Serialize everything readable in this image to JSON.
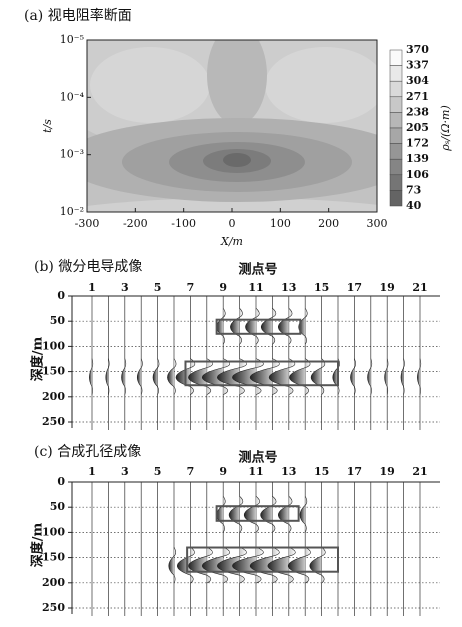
{
  "chart_data": [
    {
      "type": "contour",
      "title": "(a) 视电阻率断面",
      "x_label": "X/m",
      "y_label": "t/s",
      "xlim": [
        -300,
        300
      ],
      "xticks": [
        -300,
        -200,
        -100,
        0,
        100,
        200,
        300
      ],
      "ylim": [
        0.01,
        1e-05
      ],
      "log_y": true,
      "yticks": [
        {
          "value": 1e-05,
          "label": "10⁻⁵"
        },
        {
          "value": 0.0001,
          "label": "10⁻⁴"
        },
        {
          "value": 0.001,
          "label": "10⁻³"
        },
        {
          "value": 0.01,
          "label": "10⁻²"
        }
      ],
      "colorbar": {
        "label": "ρₛ/(Ω·m)",
        "levels": [
          370,
          337,
          304,
          271,
          238,
          205,
          172,
          139,
          106,
          73,
          40
        ]
      }
    },
    {
      "type": "wiggle",
      "title": "(b) 微分电导成像",
      "x_label": "测点号",
      "y_label": "深度/m",
      "categories": [
        "1",
        null,
        "3",
        null,
        "5",
        null,
        "7",
        null,
        "9",
        null,
        "11",
        null,
        "13",
        null,
        "15",
        null,
        "17",
        null,
        "19",
        null,
        "21"
      ],
      "ylim": [
        0,
        250
      ],
      "yticks": [
        0,
        50,
        100,
        150,
        200,
        250
      ],
      "grid": true,
      "anomalies": [
        {
          "depth": 58,
          "amplitudes": [
            0,
            0,
            0,
            0,
            0,
            0,
            0,
            0,
            0.5,
            0.7,
            0.8,
            0.85,
            0.8,
            0.5,
            0,
            0,
            0,
            0,
            0,
            0,
            0
          ]
        },
        {
          "depth": 158,
          "amplitudes": [
            0.2,
            0.2,
            0.25,
            0.3,
            0.35,
            0.5,
            1.1,
            1.4,
            1.6,
            1.7,
            1.8,
            1.7,
            1.5,
            1.2,
            0.8,
            0.4,
            0.3,
            0.25,
            0.2,
            0.2,
            0.2
          ]
        }
      ],
      "boxes": [
        {
          "x": [
            8.6,
            13.7
          ],
          "y": [
            47,
            75
          ]
        },
        {
          "x": [
            6.7,
            16.0
          ],
          "y": [
            130,
            177
          ]
        }
      ]
    },
    {
      "type": "wiggle",
      "title": "(c) 合成孔径成像",
      "x_label": "测点号",
      "y_label": "深度/m",
      "categories": [
        "1",
        null,
        "3",
        null,
        "5",
        null,
        "7",
        null,
        "9",
        null,
        "11",
        null,
        "13",
        null,
        "15",
        null,
        "17",
        null,
        "19",
        null,
        "21"
      ],
      "ylim": [
        0,
        250
      ],
      "yticks": [
        0,
        50,
        100,
        150,
        200,
        250
      ],
      "grid": true,
      "anomalies": [
        {
          "depth": 62,
          "amplitudes": [
            0,
            0,
            0,
            0,
            0,
            0,
            0,
            0,
            0.5,
            0.8,
            0.9,
            0.9,
            0.8,
            0.4,
            0,
            0,
            0,
            0,
            0,
            0,
            0
          ]
        },
        {
          "depth": 163,
          "amplitudes": [
            0,
            0,
            0,
            0,
            0,
            0.4,
            1.0,
            1.4,
            1.6,
            1.7,
            1.8,
            1.7,
            1.6,
            1.3,
            0.9,
            0,
            0,
            0,
            0,
            0,
            0
          ]
        }
      ],
      "boxes": [
        {
          "x": [
            8.6,
            13.6
          ],
          "y": [
            48,
            77
          ]
        },
        {
          "x": [
            6.8,
            16.0
          ],
          "y": [
            130,
            178
          ]
        }
      ]
    }
  ]
}
